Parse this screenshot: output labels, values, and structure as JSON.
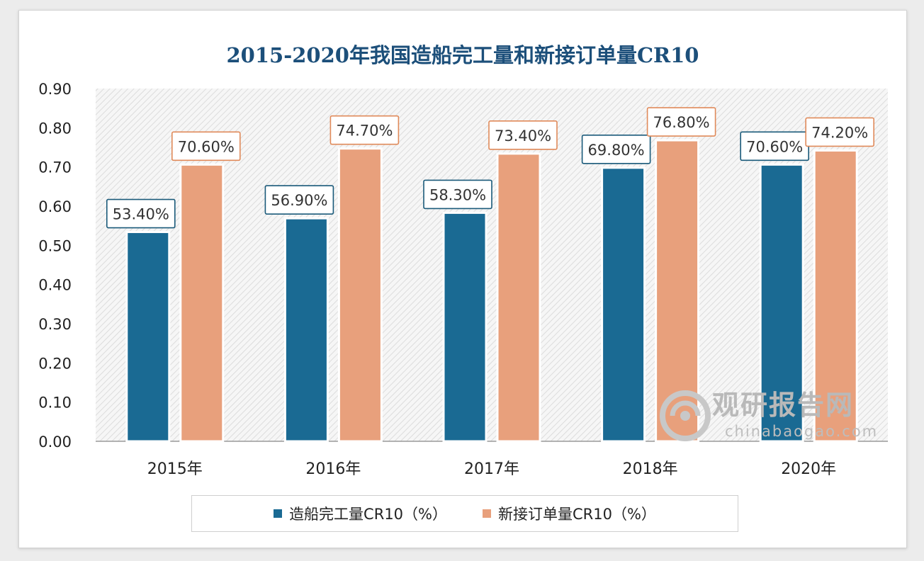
{
  "chart_data": {
    "type": "bar",
    "title": "2015-2020年我国造船完工量和新接订单量CR10",
    "categories": [
      "2015年",
      "2016年",
      "2017年",
      "2018年",
      "2020年"
    ],
    "series": [
      {
        "name": "造船完工量CR10（%）",
        "color": "#1a6a93",
        "values": [
          0.534,
          0.569,
          0.583,
          0.698,
          0.706
        ],
        "labels": [
          "53.40%",
          "56.90%",
          "58.30%",
          "69.80%",
          "70.60%"
        ]
      },
      {
        "name": "新接订单量CR10（%）",
        "color": "#e8a07c",
        "values": [
          0.706,
          0.747,
          0.734,
          0.768,
          0.742
        ],
        "labels": [
          "70.60%",
          "74.70%",
          "73.40%",
          "76.80%",
          "74.20%"
        ]
      }
    ],
    "yticks": [
      "0.00",
      "0.10",
      "0.20",
      "0.30",
      "0.40",
      "0.50",
      "0.60",
      "0.70",
      "0.80",
      "0.90"
    ],
    "ylim": [
      0,
      0.9
    ],
    "legend": "bottom"
  },
  "watermark": {
    "name_cn": "观研报告网",
    "url": "chinabaogao.com"
  }
}
